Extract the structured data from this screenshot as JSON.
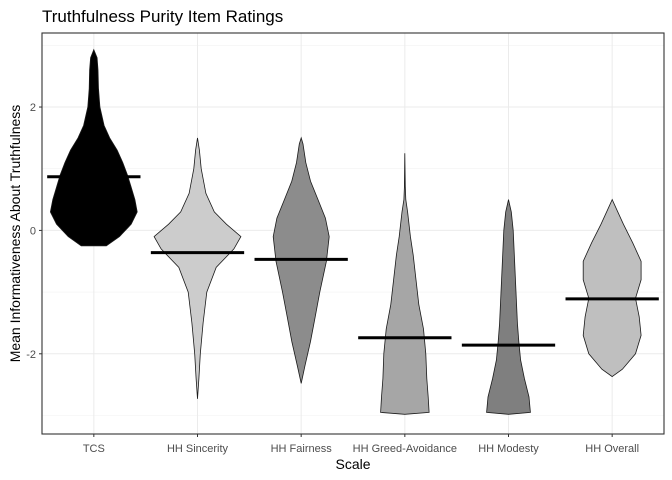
{
  "chart_data": {
    "type": "violin",
    "title": "Truthfulness Purity Item Ratings",
    "xlabel": "Scale",
    "ylabel": "Mean Informativeness About Truthfulness",
    "ylim": [
      -3.3,
      3.2
    ],
    "yticks": [
      -2,
      0,
      2
    ],
    "grid": true,
    "legend": "none",
    "categories": [
      "TCS",
      "HH Sincerity",
      "HH Fairness",
      "HH Greed-Avoidance",
      "HH Modesty",
      "HH Overall"
    ],
    "series": [
      {
        "category": "TCS",
        "fill": "#000000",
        "mean": 0.87,
        "min": -0.25,
        "max": 2.93,
        "density": [
          [
            -0.25,
            0.27
          ],
          [
            -0.1,
            0.55
          ],
          [
            0.1,
            0.8
          ],
          [
            0.3,
            0.93
          ],
          [
            0.5,
            0.88
          ],
          [
            0.7,
            0.8
          ],
          [
            0.9,
            0.72
          ],
          [
            1.1,
            0.62
          ],
          [
            1.3,
            0.5
          ],
          [
            1.5,
            0.34
          ],
          [
            1.7,
            0.22
          ],
          [
            2.0,
            0.13
          ],
          [
            2.3,
            0.1
          ],
          [
            2.6,
            0.09
          ],
          [
            2.8,
            0.07
          ],
          [
            2.93,
            0.0
          ]
        ]
      },
      {
        "category": "HH Sincerity",
        "fill": "#cccccc",
        "mean": -0.36,
        "min": -2.73,
        "max": 1.5,
        "density": [
          [
            -2.73,
            0.0
          ],
          [
            -2.4,
            0.03
          ],
          [
            -2.0,
            0.06
          ],
          [
            -1.5,
            0.12
          ],
          [
            -1.0,
            0.2
          ],
          [
            -0.6,
            0.4
          ],
          [
            -0.3,
            0.78
          ],
          [
            -0.1,
            0.93
          ],
          [
            0.1,
            0.62
          ],
          [
            0.3,
            0.36
          ],
          [
            0.6,
            0.18
          ],
          [
            1.0,
            0.08
          ],
          [
            1.3,
            0.04
          ],
          [
            1.5,
            0.0
          ]
        ]
      },
      {
        "category": "HH Fairness",
        "fill": "#8c8c8c",
        "mean": -0.47,
        "min": -2.48,
        "max": 1.5,
        "density": [
          [
            -2.48,
            0.0
          ],
          [
            -2.2,
            0.08
          ],
          [
            -1.8,
            0.2
          ],
          [
            -1.4,
            0.3
          ],
          [
            -1.0,
            0.4
          ],
          [
            -0.5,
            0.54
          ],
          [
            -0.1,
            0.6
          ],
          [
            0.2,
            0.52
          ],
          [
            0.5,
            0.36
          ],
          [
            0.8,
            0.2
          ],
          [
            1.1,
            0.1
          ],
          [
            1.4,
            0.04
          ],
          [
            1.5,
            0.0
          ]
        ]
      },
      {
        "category": "HH Greed-Avoidance",
        "fill": "#a6a6a6",
        "mean": -1.74,
        "min": -2.98,
        "max": 1.25,
        "density": [
          [
            -2.98,
            0.0
          ],
          [
            -2.95,
            0.52
          ],
          [
            -2.7,
            0.5
          ],
          [
            -2.4,
            0.47
          ],
          [
            -2.0,
            0.45
          ],
          [
            -1.6,
            0.4
          ],
          [
            -1.2,
            0.3
          ],
          [
            -0.8,
            0.24
          ],
          [
            -0.4,
            0.18
          ],
          [
            -0.1,
            0.12
          ],
          [
            0.3,
            0.06
          ],
          [
            0.5,
            0.02
          ],
          [
            0.7,
            0.01
          ],
          [
            1.25,
            0.0
          ]
        ]
      },
      {
        "category": "HH Modesty",
        "fill": "#7f7f7f",
        "mean": -1.86,
        "min": -2.98,
        "max": 0.5,
        "density": [
          [
            -2.98,
            0.0
          ],
          [
            -2.95,
            0.47
          ],
          [
            -2.7,
            0.44
          ],
          [
            -2.4,
            0.34
          ],
          [
            -2.1,
            0.26
          ],
          [
            -1.8,
            0.22
          ],
          [
            -1.5,
            0.19
          ],
          [
            -1.0,
            0.16
          ],
          [
            -0.5,
            0.13
          ],
          [
            0.0,
            0.1
          ],
          [
            0.3,
            0.06
          ],
          [
            0.5,
            0.0
          ]
        ]
      },
      {
        "category": "HH Overall",
        "fill": "#bfbfbf",
        "mean": -1.11,
        "min": -2.37,
        "max": 0.5,
        "density": [
          [
            -2.37,
            0.0
          ],
          [
            -2.25,
            0.22
          ],
          [
            -2.0,
            0.5
          ],
          [
            -1.7,
            0.62
          ],
          [
            -1.4,
            0.58
          ],
          [
            -1.1,
            0.5
          ],
          [
            -0.8,
            0.62
          ],
          [
            -0.5,
            0.62
          ],
          [
            -0.2,
            0.44
          ],
          [
            0.1,
            0.24
          ],
          [
            0.3,
            0.12
          ],
          [
            0.5,
            0.0
          ]
        ]
      }
    ]
  }
}
